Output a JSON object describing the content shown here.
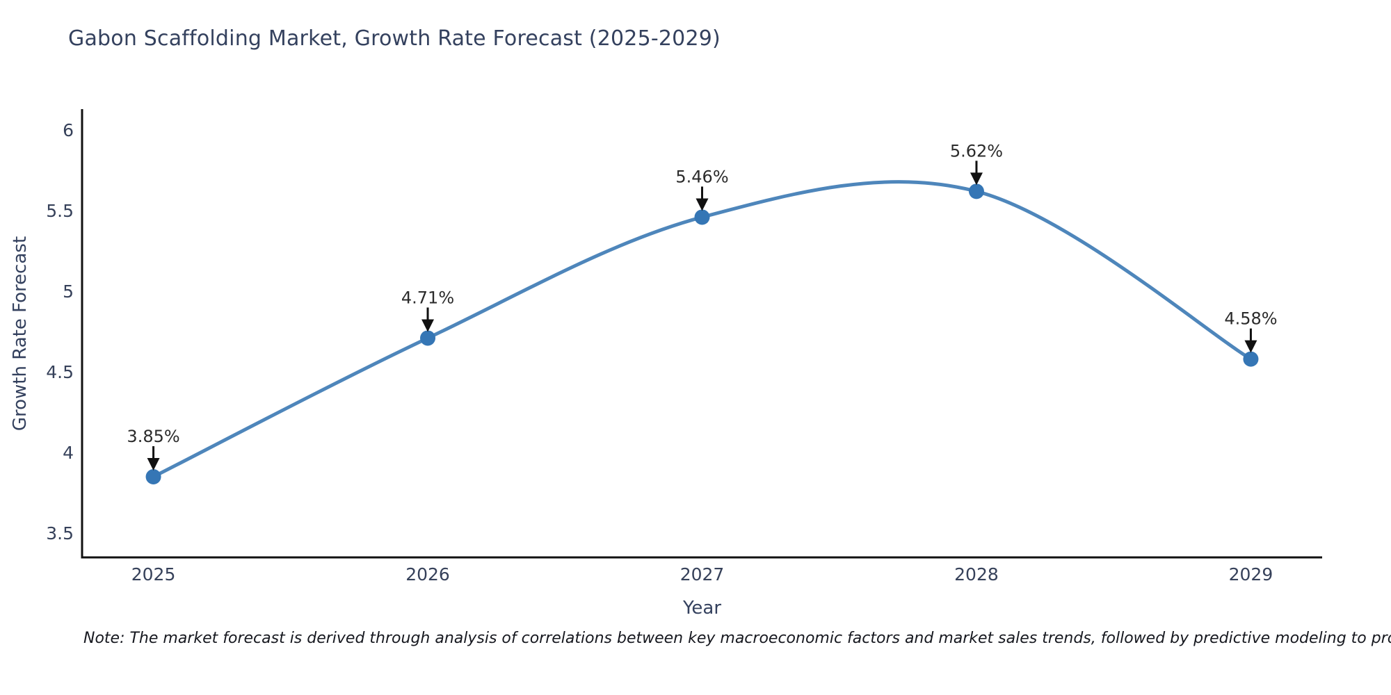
{
  "note": "Note: The market forecast is derived through analysis of correlations between key macroeconomic factors and market sales trends, followed by predictive modeling to project future sales",
  "chart_data": {
    "type": "line",
    "title": "Gabon Scaffolding Market, Growth Rate Forecast (2025-2029)",
    "xlabel": "Year",
    "ylabel": "Growth Rate Forecast",
    "x": [
      2025,
      2026,
      2027,
      2028,
      2029
    ],
    "values": [
      3.85,
      4.71,
      5.46,
      5.62,
      4.58
    ],
    "point_labels": [
      "3.85%",
      "4.71%",
      "5.46%",
      "5.62%",
      "4.58%"
    ],
    "x_tick_labels": [
      "2025",
      "2026",
      "2027",
      "2028",
      "2029"
    ],
    "y_tick_values": [
      3.5,
      4,
      4.5,
      5,
      5.5,
      6
    ],
    "y_tick_labels": [
      "3.5",
      "4",
      "4.5",
      "5",
      "5.5",
      "6"
    ],
    "xlim": [
      2024.74,
      2029.26
    ],
    "ylim": [
      3.35,
      6.13
    ],
    "grid": false,
    "legend_position": "none",
    "line_shape": "spline",
    "colors": {
      "line": "#4e86bb",
      "marker": "#3576b5",
      "axis": "#111111",
      "tick_text": "#36415a",
      "title_text": "#34415e",
      "annotation_text": "#2b2b2b",
      "arrow": "#111111"
    }
  }
}
